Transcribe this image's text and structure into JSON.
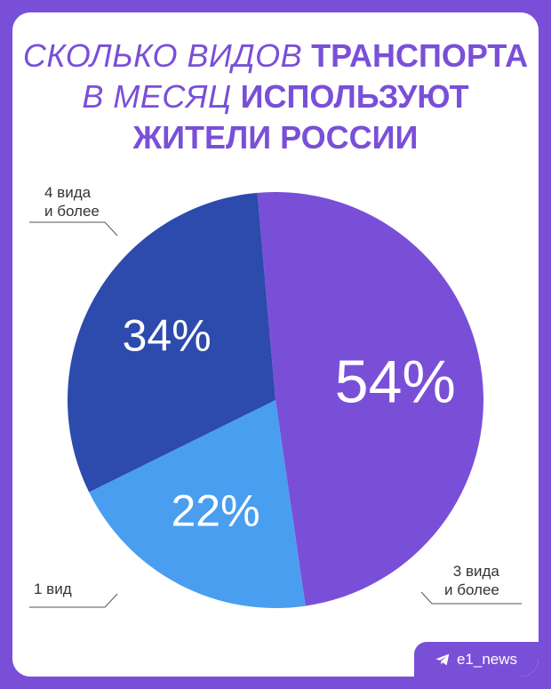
{
  "title": {
    "line1_light": "СКОЛЬКО ВИДОВ",
    "line1_bold": "ТРАНСПОРТА",
    "line2_light": "В МЕСЯЦ",
    "line2_bold": "ИСПОЛЬЗУЮТ",
    "line3_bold": "ЖИТЕЛИ РОССИИ"
  },
  "brand": {
    "handle": "e1_news",
    "icon": "telegram-plane-icon"
  },
  "colors": {
    "background": "#7a4fd8",
    "slice_3_plus": "#7a4fd8",
    "slice_1": "#4a9ef0",
    "slice_4_plus": "#2d4aad",
    "text_on_slice": "#ffffff"
  },
  "chart_data": {
    "type": "pie",
    "title": "СКОЛЬКО ВИДОВ ТРАНСПОРТА В МЕСЯЦ ИСПОЛЬЗУЮТ ЖИТЕЛИ РОССИИ",
    "slices": [
      {
        "label_line1": "3 вида",
        "label_line2": "и более",
        "value": 54,
        "value_label": "54%"
      },
      {
        "label_line1": "1 вид",
        "label_line2": "",
        "value": 22,
        "value_label": "22%"
      },
      {
        "label_line1": "4 вида",
        "label_line2": "и более",
        "value": 34,
        "value_label": "34%"
      }
    ]
  }
}
